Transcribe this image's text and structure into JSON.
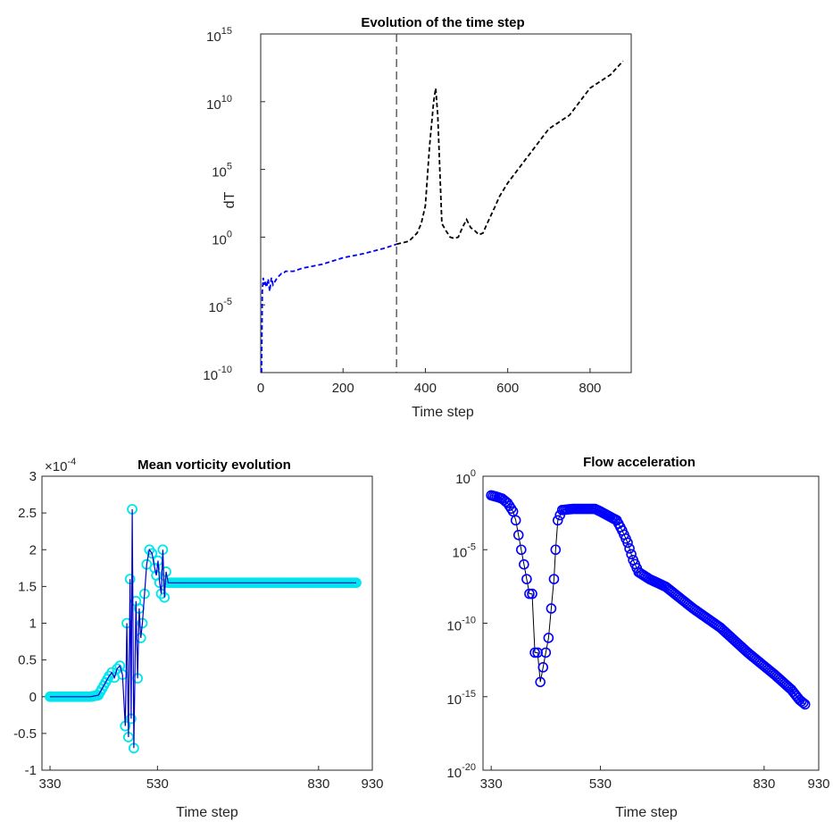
{
  "chart_data": [
    {
      "type": "line",
      "title": "Evolution of the time step",
      "xlabel": "Time step",
      "ylabel": "dT",
      "yscale": "log",
      "xlim": [
        0,
        900
      ],
      "ylim": [
        1e-10,
        1000000000000000.0
      ],
      "xticks": [
        "0",
        "200",
        "400",
        "600",
        "800"
      ],
      "yticks": [
        {
          "base": "10",
          "exp": "-10"
        },
        {
          "base": "10",
          "exp": "-5"
        },
        {
          "base": "10",
          "exp": "0"
        },
        {
          "base": "10",
          "exp": "5"
        },
        {
          "base": "10",
          "exp": "10"
        },
        {
          "base": "10",
          "exp": "15"
        }
      ],
      "vline_x": 330,
      "colors": {
        "series1": "#0000ff",
        "series2": "#000000",
        "vline": "#555555"
      },
      "series": [
        {
          "style": "dashed",
          "points": [
            [
              2,
              1e-10
            ],
            [
              3,
              1e-07
            ],
            [
              4,
              0.0001
            ],
            [
              6,
              0.001
            ],
            [
              8,
              0.0003
            ],
            [
              10,
              0.0006
            ],
            [
              14,
              0.0002
            ],
            [
              18,
              0.0008
            ],
            [
              22,
              0.0001
            ],
            [
              26,
              0.001
            ],
            [
              30,
              0.0003
            ],
            [
              40,
              0.001
            ],
            [
              50,
              0.002
            ],
            [
              55,
              0.002
            ],
            [
              60,
              0.003
            ],
            [
              80,
              0.003
            ],
            [
              100,
              0.005
            ],
            [
              150,
              0.01
            ],
            [
              200,
              0.03
            ],
            [
              250,
              0.06
            ],
            [
              300,
              0.15
            ],
            [
              330,
              0.3
            ]
          ]
        },
        {
          "style": "dashed",
          "points": [
            [
              330,
              0.3
            ],
            [
              360,
              0.5
            ],
            [
              380,
              2
            ],
            [
              390,
              10
            ],
            [
              400,
              200
            ],
            [
              410,
              5000000.0
            ],
            [
              420,
              10000000000.0
            ],
            [
              425,
              100000000000.0
            ],
            [
              430,
              1000000000.0
            ],
            [
              440,
              10
            ],
            [
              450,
              3
            ],
            [
              460,
              1
            ],
            [
              470,
              0.8
            ],
            [
              480,
              1
            ],
            [
              490,
              5
            ],
            [
              500,
              20
            ],
            [
              510,
              5
            ],
            [
              520,
              3
            ],
            [
              530,
              1.5
            ],
            [
              540,
              2
            ],
            [
              550,
              10
            ],
            [
              570,
              200
            ],
            [
              580,
              1000
            ],
            [
              600,
              10000.0
            ],
            [
              650,
              1000000.0
            ],
            [
              700,
              100000000.0
            ],
            [
              750,
              1000000000.0
            ],
            [
              800,
              100000000000.0
            ],
            [
              850,
              1000000000000.0
            ],
            [
              880,
              10000000000000.0
            ]
          ]
        }
      ]
    },
    {
      "type": "line",
      "title": "Mean vorticity evolution",
      "xlabel": "Time step",
      "ylabel": "",
      "xlim": [
        315,
        930
      ],
      "ylim": [
        -1,
        3
      ],
      "exponent": {
        "base": "×10",
        "exp": "-4"
      },
      "xticks": [
        "330",
        "530",
        "830",
        "930"
      ],
      "yticks": [
        "-1",
        "-0.5",
        "0",
        "0.5",
        "1",
        "1.5",
        "2",
        "2.5",
        "3"
      ],
      "colors": {
        "line": "#0000cc",
        "marker": "#00e5ee"
      },
      "series": [
        {
          "marker": "circle",
          "points": [
            [
              330,
              0
            ],
            [
              345,
              0
            ],
            [
              360,
              0
            ],
            [
              375,
              0
            ],
            [
              390,
              0
            ],
            [
              405,
              0
            ],
            [
              420,
              0.02
            ],
            [
              430,
              0.15
            ],
            [
              440,
              0.28
            ],
            [
              445,
              0.33
            ],
            [
              450,
              0.26
            ],
            [
              455,
              0.38
            ],
            [
              460,
              0.42
            ],
            [
              465,
              0.3
            ],
            [
              470,
              -0.4
            ],
            [
              473,
              1.0
            ],
            [
              476,
              -0.55
            ],
            [
              479,
              1.6
            ],
            [
              481,
              -0.3
            ],
            [
              483,
              2.55
            ],
            [
              486,
              -0.7
            ],
            [
              490,
              1.3
            ],
            [
              493,
              0.25
            ],
            [
              496,
              1.2
            ],
            [
              499,
              0.8
            ],
            [
              502,
              1.0
            ],
            [
              506,
              1.4
            ],
            [
              510,
              1.8
            ],
            [
              515,
              2.0
            ],
            [
              520,
              1.95
            ],
            [
              525,
              1.75
            ],
            [
              528,
              1.65
            ],
            [
              531,
              1.85
            ],
            [
              534,
              1.55
            ],
            [
              537,
              1.4
            ],
            [
              540,
              2.0
            ],
            [
              543,
              1.35
            ],
            [
              546,
              1.7
            ],
            [
              550,
              1.55
            ],
            [
              555,
              1.55
            ],
            [
              600,
              1.55
            ],
            [
              650,
              1.55
            ],
            [
              700,
              1.55
            ],
            [
              750,
              1.55
            ],
            [
              800,
              1.55
            ],
            [
              850,
              1.55
            ],
            [
              900,
              1.55
            ]
          ]
        }
      ]
    },
    {
      "type": "line",
      "title": "Flow acceleration",
      "xlabel": "Time step",
      "ylabel": "",
      "yscale": "log",
      "xlim": [
        315,
        930
      ],
      "ylim": [
        1e-20,
        1
      ],
      "xticks": [
        "330",
        "530",
        "830",
        "930"
      ],
      "yticks": [
        {
          "base": "10",
          "exp": "-20"
        },
        {
          "base": "10",
          "exp": "-15"
        },
        {
          "base": "10",
          "exp": "-10"
        },
        {
          "base": "10",
          "exp": "-5"
        },
        {
          "base": "10",
          "exp": "0"
        }
      ],
      "colors": {
        "line": "#000000",
        "marker": "#0000ff"
      },
      "series": [
        {
          "marker": "circle",
          "points": [
            [
              330,
              0.05
            ],
            [
              340,
              0.04
            ],
            [
              350,
              0.03
            ],
            [
              360,
              0.015
            ],
            [
              370,
              0.004
            ],
            [
              375,
              0.001
            ],
            [
              380,
              0.0001
            ],
            [
              385,
              1e-05
            ],
            [
              390,
              1e-06
            ],
            [
              395,
              1e-07
            ],
            [
              400,
              1e-08
            ],
            [
              405,
              1e-08
            ],
            [
              410,
              1e-12
            ],
            [
              415,
              1e-12
            ],
            [
              420,
              1e-14
            ],
            [
              425,
              1e-13
            ],
            [
              430,
              1e-12
            ],
            [
              435,
              1e-11
            ],
            [
              440,
              1e-09
            ],
            [
              445,
              1e-07
            ],
            [
              448,
              1e-05
            ],
            [
              452,
              0.001
            ],
            [
              460,
              0.005
            ],
            [
              480,
              0.006
            ],
            [
              500,
              0.006
            ],
            [
              520,
              0.006
            ],
            [
              530,
              0.004
            ],
            [
              545,
              0.002
            ],
            [
              560,
              0.001
            ],
            [
              570,
              0.0002
            ],
            [
              580,
              3e-05
            ],
            [
              590,
              2e-06
            ],
            [
              600,
              3e-07
            ],
            [
              620,
              1e-07
            ],
            [
              650,
              3e-08
            ],
            [
              700,
              1e-09
            ],
            [
              750,
              5e-11
            ],
            [
              800,
              1e-12
            ],
            [
              850,
              3e-14
            ],
            [
              880,
              3e-15
            ],
            [
              895,
              6e-16
            ],
            [
              905,
              3e-16
            ]
          ]
        }
      ]
    }
  ]
}
